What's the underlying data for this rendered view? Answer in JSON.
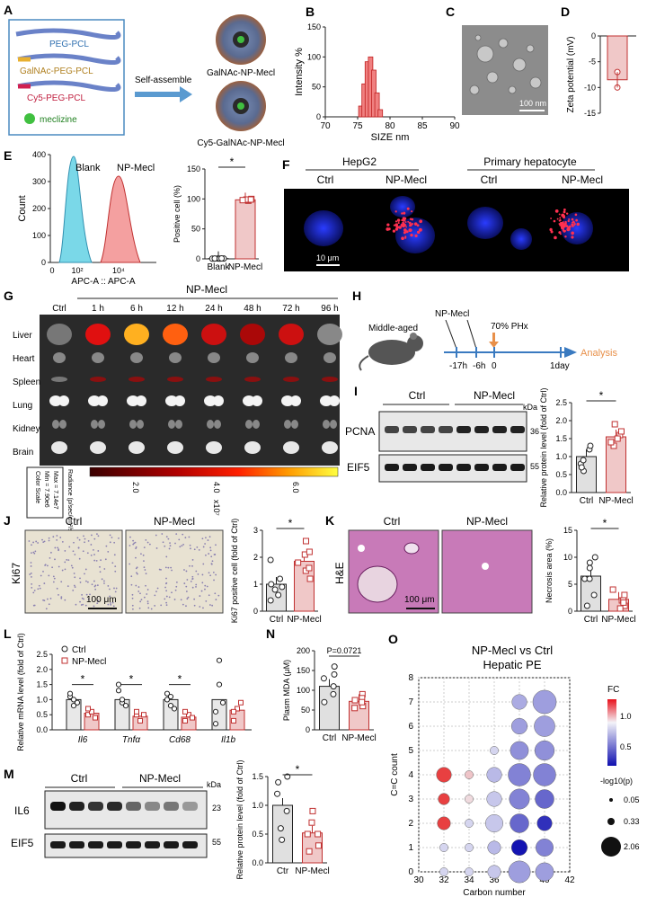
{
  "panels": {
    "A": {
      "letter": "A",
      "items": [
        "PEG-PCL",
        "GalNAc-PEG-PCL",
        "Cy5-PEG-PCL",
        "meclizine"
      ],
      "arrow": "Self-assemble",
      "np1": "GalNAc-NP-Mecl",
      "np2": "Cy5-GalNAc-NP-Mecl"
    },
    "B": {
      "letter": "B",
      "xlabel": "SIZE nm",
      "ylabel": "Intensity %",
      "xticks": [
        "70",
        "75",
        "80",
        "85",
        "90"
      ],
      "yticks": [
        "0",
        "50",
        "100",
        "150"
      ]
    },
    "C": {
      "letter": "C",
      "scale": "100 nm"
    },
    "D": {
      "letter": "D",
      "ylabel": "Zeta potential (mV)",
      "yticks": [
        "0",
        "-5",
        "-10",
        "-15"
      ]
    },
    "E": {
      "letter": "E",
      "count": "Count",
      "xlabel": "APC-A :: APC-A",
      "blank": "Blank",
      "np": "NP-Mecl",
      "yticks": [
        "0",
        "100",
        "200",
        "300",
        "400"
      ],
      "xticks": [
        "0",
        "10²",
        "10⁴"
      ],
      "bar_ylabel": "Positive cell (%)",
      "bar_yticks": [
        "0",
        "50",
        "100",
        "150"
      ],
      "bar_x": [
        "Blank",
        "NP-Mecl"
      ],
      "sig": "*"
    },
    "F": {
      "letter": "F",
      "group1": "HepG2",
      "group2": "Primary hepatocyte",
      "cols": [
        "Ctrl",
        "NP-Mecl",
        "Ctrl",
        "NP-Mecl"
      ],
      "scale": "10 μm"
    },
    "G": {
      "letter": "G",
      "header": "NP-Mecl",
      "cols": [
        "Ctrl",
        "1 h",
        "6 h",
        "12 h",
        "24 h",
        "48 h",
        "72 h",
        "96 h"
      ],
      "rows": [
        "Liver",
        "Heart",
        "Spleen",
        "Lung",
        "Kidney",
        "Brain"
      ],
      "legend_box": [
        "Color Scale",
        "Min = 7.90e6",
        "Max = 7.14e7"
      ],
      "radiance": "Radiance (p/sec/cm²/sr)",
      "ticks": [
        "2.0",
        "4.0",
        "6.0"
      ],
      "exp": "x10⁷"
    },
    "H": {
      "letter": "H",
      "mouse": "Middle-aged",
      "np": "NP-Mecl",
      "phx": "70% PHx",
      "times": [
        "-17h",
        "-6h",
        "0",
        "1day"
      ],
      "analysis": "Analysis"
    },
    "I": {
      "letter": "I",
      "ctrl": "Ctrl",
      "np": "NP-Mecl",
      "pcna": "PCNA",
      "eif5": "EIF5",
      "kda": "kDa",
      "m1": "36",
      "m2": "55",
      "ylabel": "Relative protein level (fold of Ctrl)",
      "yticks": [
        "0.0",
        "0.5",
        "1.0",
        "1.5",
        "2.0",
        "2.5"
      ],
      "x": [
        "Ctrl",
        "NP-Mecl"
      ],
      "sig": "*"
    },
    "J": {
      "letter": "J",
      "ctrl": "Ctrl",
      "np": "NP-Mecl",
      "side": "Ki67",
      "scale": "100 μm",
      "ylabel": "Ki67 positive cell (fold of Ctrl)",
      "yticks": [
        "0",
        "1",
        "2",
        "3"
      ],
      "x": [
        "Ctrl",
        "NP-Mecl"
      ],
      "sig": "*"
    },
    "K": {
      "letter": "K",
      "ctrl": "Ctrl",
      "np": "NP-Mecl",
      "side": "H&E",
      "scale": "100 μm",
      "ylabel": "Necrosis area (%)",
      "yticks": [
        "0",
        "5",
        "10",
        "15"
      ],
      "x": [
        "Ctrl",
        "NP-Mecl"
      ],
      "sig": "*"
    },
    "L": {
      "letter": "L",
      "ylabel": "Relative mRNA level (fold of Ctrl)",
      "yticks": [
        "0.0",
        "0.5",
        "1.0",
        "1.5",
        "2.0",
        "2.5"
      ],
      "genes": [
        "Il6",
        "Tnfα",
        "Cd68",
        "Il1b"
      ],
      "legend": [
        "Ctrl",
        "NP-Mecl"
      ],
      "sig": "*"
    },
    "M": {
      "letter": "M",
      "ctrl": "Ctrl",
      "np": "NP-Mecl",
      "il6": "IL6",
      "eif5": "EIF5",
      "kda": "kDa",
      "m1": "23",
      "m2": "55",
      "ylabel": "Relative protein level (fold of Ctrl)",
      "yticks": [
        "0.0",
        "0.5",
        "1.0",
        "1.5"
      ],
      "x": [
        "Ctr",
        "NP-Mecl"
      ],
      "sig": "*"
    },
    "N": {
      "letter": "N",
      "ylabel": "Plasm MDA (μM)",
      "yticks": [
        "0",
        "50",
        "100",
        "150",
        "200"
      ],
      "x": [
        "Ctrl",
        "NP-Mecl"
      ],
      "pval": "P=0.0721"
    },
    "O": {
      "letter": "O",
      "title1": "NP-Mecl vs Ctrl",
      "title2": "Hepatic PE",
      "xlabel": "Carbon number",
      "ylabel": "C=C count",
      "xticks": [
        "30",
        "32",
        "34",
        "36",
        "38",
        "40",
        "42"
      ],
      "yticks": [
        "0",
        "1",
        "2",
        "3",
        "4",
        "5",
        "6",
        "7",
        "8"
      ],
      "fc": "FC",
      "fc_ticks": [
        "1.0",
        "0.5"
      ],
      "size_title": "-log10(p)",
      "sizes": [
        "0.05",
        "0.33",
        "2.06"
      ]
    }
  },
  "chart_data": [
    {
      "panel": "B",
      "type": "bar",
      "title": "",
      "xlabel": "SIZE nm",
      "ylabel": "Intensity %",
      "x": [
        75.5,
        76,
        76.5,
        77,
        77.5,
        78,
        78.5
      ],
      "values": [
        18,
        55,
        92,
        100,
        78,
        40,
        12
      ],
      "xlim": [
        70,
        90
      ],
      "ylim": [
        0,
        150
      ]
    },
    {
      "panel": "D",
      "type": "bar",
      "ylabel": "Zeta potential (mV)",
      "categories": [
        ""
      ],
      "values": [
        -8.5
      ],
      "points": [
        -7,
        -10
      ],
      "ylim": [
        -15,
        0
      ]
    },
    {
      "panel": "E",
      "type": "bar",
      "ylabel": "Positive cell (%)",
      "categories": [
        "Blank",
        "NP-Mecl"
      ],
      "values": [
        0.5,
        98.5
      ],
      "ylim": [
        0,
        150
      ]
    },
    {
      "panel": "I",
      "type": "bar",
      "ylabel": "Relative protein level (fold of Ctrl)",
      "categories": [
        "Ctrl",
        "NP-Mecl"
      ],
      "values": [
        1.0,
        1.55
      ],
      "ylim": [
        0,
        2.5
      ]
    },
    {
      "panel": "J",
      "type": "bar",
      "ylabel": "Ki67 positive cell (fold of Ctrl)",
      "categories": [
        "Ctrl",
        "NP-Mecl"
      ],
      "values": [
        1.0,
        1.85
      ],
      "ylim": [
        0,
        3
      ]
    },
    {
      "panel": "K",
      "type": "bar",
      "ylabel": "Necrosis area (%)",
      "categories": [
        "Ctrl",
        "NP-Mecl"
      ],
      "values": [
        6.5,
        2.2
      ],
      "ylim": [
        0,
        15
      ]
    },
    {
      "panel": "L",
      "type": "bar",
      "ylabel": "Relative mRNA level (fold of Ctrl)",
      "categories": [
        "Il6",
        "Tnfα",
        "Cd68",
        "Il1b"
      ],
      "series": [
        {
          "name": "Ctrl",
          "values": [
            1.0,
            1.0,
            1.0,
            1.0
          ]
        },
        {
          "name": "NP-Mecl",
          "values": [
            0.55,
            0.45,
            0.42,
            0.65
          ]
        }
      ],
      "ylim": [
        0,
        2.5
      ]
    },
    {
      "panel": "M",
      "type": "bar",
      "ylabel": "Relative protein level (fold of Ctrl)",
      "categories": [
        "Ctr",
        "NP-Mecl"
      ],
      "values": [
        1.0,
        0.52
      ],
      "ylim": [
        0,
        1.5
      ]
    },
    {
      "panel": "N",
      "type": "bar",
      "ylabel": "Plasm MDA (μM)",
      "categories": [
        "Ctrl",
        "NP-Mecl"
      ],
      "values": [
        110,
        72
      ],
      "ylim": [
        0,
        200
      ]
    },
    {
      "panel": "O",
      "type": "scatter",
      "title": "NP-Mecl vs Ctrl Hepatic PE",
      "xlabel": "Carbon number",
      "ylabel": "C=C count",
      "xlim": [
        30,
        42
      ],
      "ylim": [
        0,
        8
      ],
      "points": [
        {
          "x": 32,
          "y": 0,
          "fc": 0.9,
          "p": 0.05
        },
        {
          "x": 32,
          "y": 1,
          "fc": 0.9,
          "p": 0.05
        },
        {
          "x": 32,
          "y": 2,
          "fc": 1.4,
          "p": 0.33
        },
        {
          "x": 32,
          "y": 3,
          "fc": 1.4,
          "p": 0.2
        },
        {
          "x": 32,
          "y": 4,
          "fc": 1.4,
          "p": 0.5
        },
        {
          "x": 34,
          "y": 0,
          "fc": 0.9,
          "p": 0.05
        },
        {
          "x": 34,
          "y": 1,
          "fc": 0.9,
          "p": 0.05
        },
        {
          "x": 34,
          "y": 2,
          "fc": 0.9,
          "p": 0.05
        },
        {
          "x": 34,
          "y": 3,
          "fc": 1.05,
          "p": 0.05
        },
        {
          "x": 34,
          "y": 4,
          "fc": 1.1,
          "p": 0.05
        },
        {
          "x": 36,
          "y": 0,
          "fc": 0.85,
          "p": 0.33
        },
        {
          "x": 36,
          "y": 1,
          "fc": 0.8,
          "p": 0.33
        },
        {
          "x": 36,
          "y": 2,
          "fc": 0.85,
          "p": 0.8
        },
        {
          "x": 36,
          "y": 3,
          "fc": 0.85,
          "p": 0.5
        },
        {
          "x": 36,
          "y": 4,
          "fc": 0.8,
          "p": 0.5
        },
        {
          "x": 36,
          "y": 5,
          "fc": 0.9,
          "p": 0.05
        },
        {
          "x": 38,
          "y": 0,
          "fc": 0.7,
          "p": 1.5
        },
        {
          "x": 38,
          "y": 1,
          "fc": 0.2,
          "p": 0.6
        },
        {
          "x": 38,
          "y": 2,
          "fc": 0.5,
          "p": 1.0
        },
        {
          "x": 38,
          "y": 3,
          "fc": 0.6,
          "p": 1.2
        },
        {
          "x": 38,
          "y": 4,
          "fc": 0.6,
          "p": 1.6
        },
        {
          "x": 38,
          "y": 5,
          "fc": 0.65,
          "p": 0.9
        },
        {
          "x": 38,
          "y": 6,
          "fc": 0.7,
          "p": 0.6
        },
        {
          "x": 38,
          "y": 7,
          "fc": 0.75,
          "p": 0.5
        },
        {
          "x": 40,
          "y": 0,
          "fc": 0.7,
          "p": 0.9
        },
        {
          "x": 40,
          "y": 1,
          "fc": 0.6,
          "p": 0.8
        },
        {
          "x": 40,
          "y": 2,
          "fc": 0.3,
          "p": 0.5
        },
        {
          "x": 40,
          "y": 3,
          "fc": 0.5,
          "p": 1.0
        },
        {
          "x": 40,
          "y": 4,
          "fc": 0.6,
          "p": 1.6
        },
        {
          "x": 40,
          "y": 5,
          "fc": 0.65,
          "p": 1.1
        },
        {
          "x": 40,
          "y": 6,
          "fc": 0.7,
          "p": 1.3
        },
        {
          "x": 40,
          "y": 7,
          "fc": 0.7,
          "p": 1.8
        }
      ]
    }
  ]
}
